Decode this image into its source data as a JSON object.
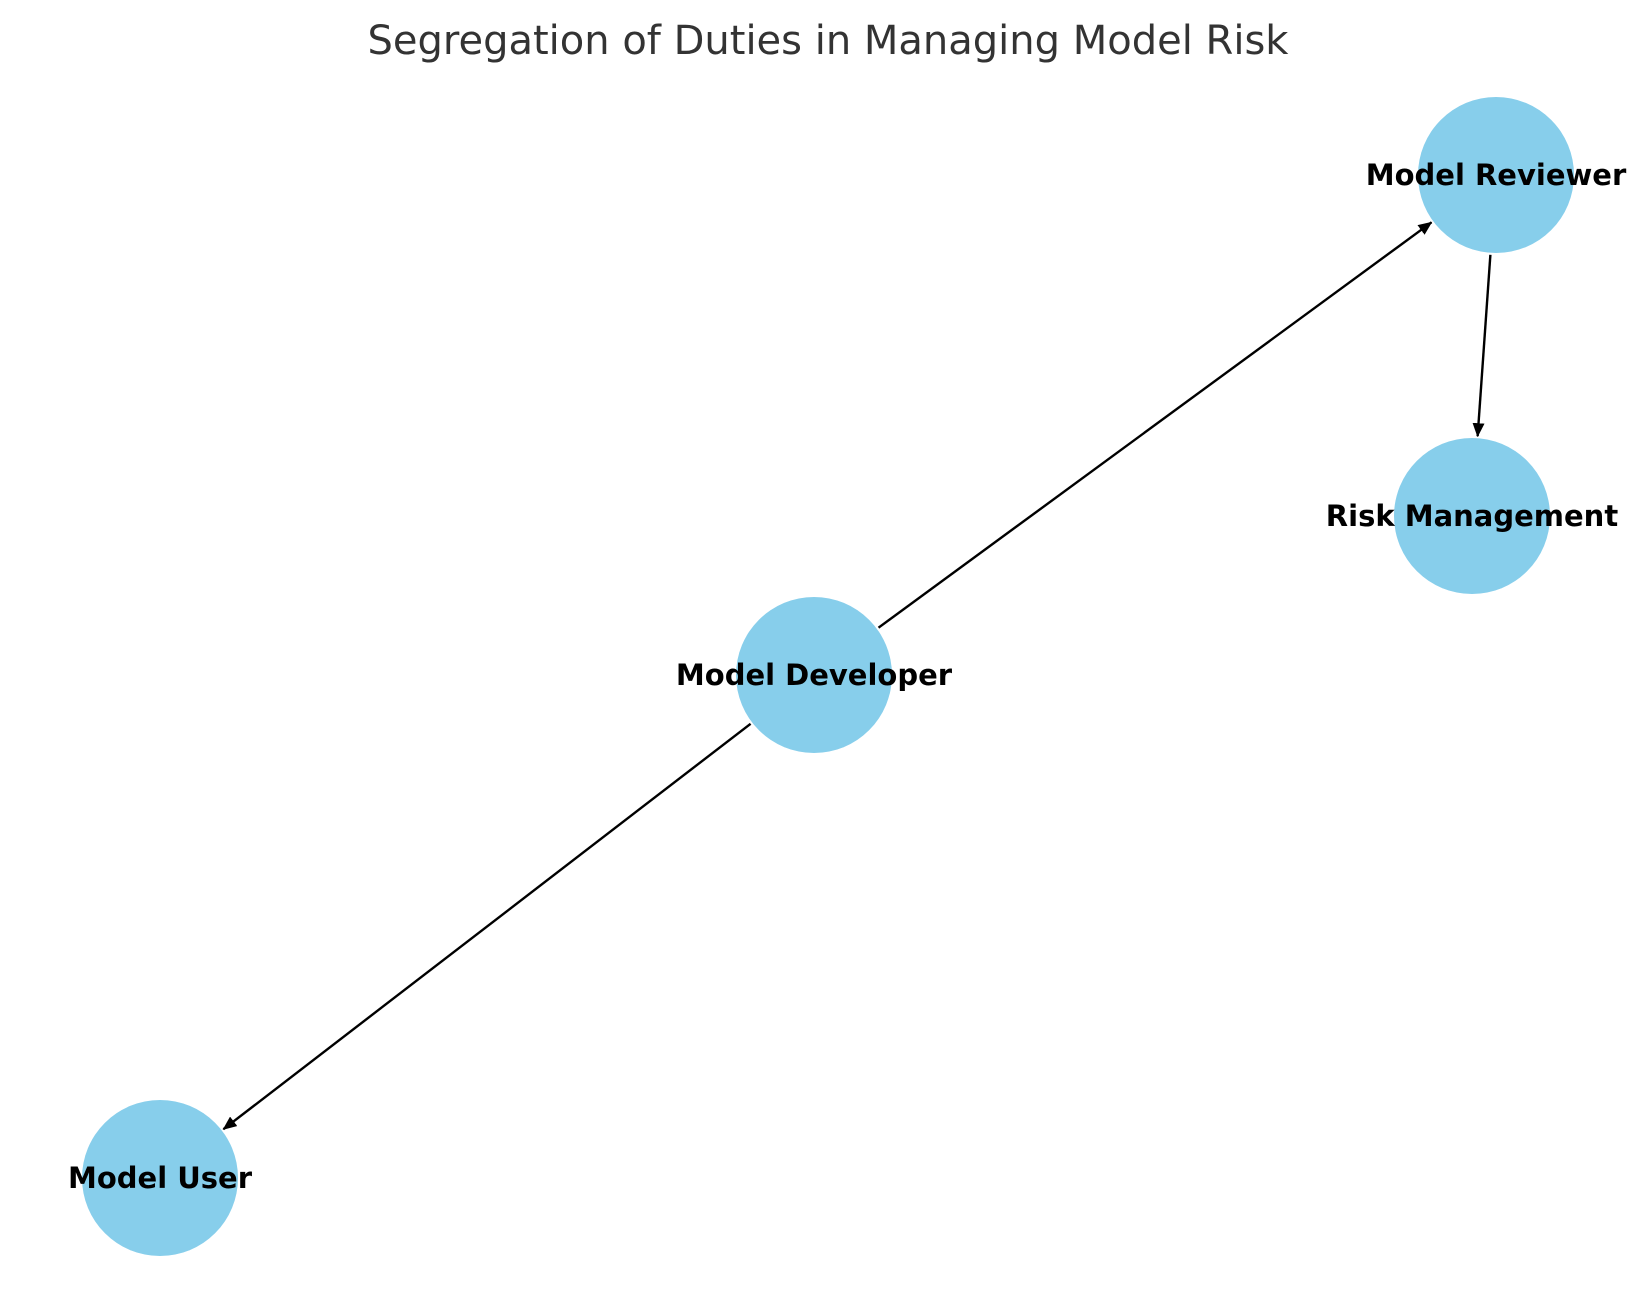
{
  "title": "Segregation of Duties in Managing Model Risk",
  "colors": {
    "node_fill": "#87CEEB",
    "edge": "#000000",
    "title": "#333333",
    "label": "#000000"
  },
  "nodes": [
    {
      "id": "model-reviewer",
      "label": "Model Reviewer"
    },
    {
      "id": "risk-management",
      "label": "Risk Management"
    },
    {
      "id": "model-developer",
      "label": "Model Developer"
    },
    {
      "id": "model-user",
      "label": "Model User"
    }
  ],
  "edges": [
    {
      "from": "model-developer",
      "to": "model-reviewer"
    },
    {
      "from": "model-reviewer",
      "to": "risk-management"
    },
    {
      "from": "model-developer",
      "to": "model-user"
    }
  ]
}
